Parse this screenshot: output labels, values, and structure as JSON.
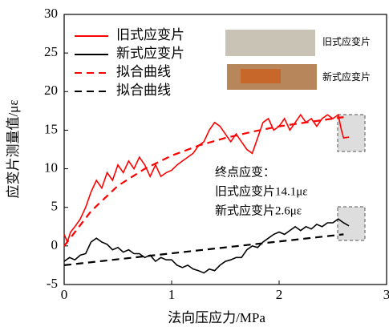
{
  "chart_data": {
    "type": "line",
    "x_label": "法向压应力/MPa",
    "y_label": "应变片测量值/με",
    "xlim": [
      0,
      3
    ],
    "xticks": [
      0,
      1,
      2,
      3
    ],
    "ylim": [
      -5,
      30
    ],
    "yticks": [
      -5,
      0,
      5,
      10,
      15,
      20,
      25,
      30
    ],
    "series": [
      {
        "name": "旧式应变片",
        "color": "#ff0000",
        "dashed": false,
        "x": [
          0,
          0.03,
          0.06,
          0.1,
          0.15,
          0.2,
          0.25,
          0.3,
          0.35,
          0.4,
          0.45,
          0.5,
          0.55,
          0.6,
          0.65,
          0.7,
          0.75,
          0.8,
          0.85,
          0.9,
          0.95,
          1.0,
          1.05,
          1.1,
          1.15,
          1.2,
          1.25,
          1.3,
          1.35,
          1.4,
          1.45,
          1.5,
          1.55,
          1.6,
          1.65,
          1.7,
          1.75,
          1.8,
          1.85,
          1.9,
          1.95,
          2.0,
          2.05,
          2.1,
          2.15,
          2.2,
          2.25,
          2.3,
          2.35,
          2.4,
          2.45,
          2.5,
          2.55,
          2.58,
          2.6,
          2.65
        ],
        "values": [
          1.5,
          0.5,
          1.8,
          2.5,
          3.5,
          5,
          7,
          8.5,
          7.5,
          9.5,
          8.5,
          10.5,
          9.5,
          11,
          10,
          11.5,
          10.5,
          9,
          10.5,
          9,
          9.5,
          9.8,
          10.5,
          11,
          11.5,
          12,
          13,
          13.5,
          15,
          16,
          15.5,
          14.5,
          13.5,
          14.5,
          13.5,
          12.5,
          12,
          14,
          16,
          16.5,
          15,
          15.5,
          16.5,
          15,
          16,
          17,
          16,
          16.5,
          15.5,
          16.5,
          17,
          16.5,
          17,
          15,
          14,
          14.1
        ]
      },
      {
        "name": "新式应变片",
        "color": "#000000",
        "dashed": false,
        "x": [
          0,
          0.05,
          0.1,
          0.15,
          0.2,
          0.25,
          0.3,
          0.35,
          0.4,
          0.45,
          0.5,
          0.55,
          0.6,
          0.65,
          0.7,
          0.75,
          0.8,
          0.85,
          0.9,
          0.95,
          1.0,
          1.05,
          1.1,
          1.15,
          1.2,
          1.25,
          1.3,
          1.35,
          1.4,
          1.45,
          1.5,
          1.55,
          1.6,
          1.65,
          1.7,
          1.75,
          1.8,
          1.85,
          1.9,
          1.95,
          2.0,
          2.05,
          2.1,
          2.15,
          2.2,
          2.25,
          2.3,
          2.35,
          2.4,
          2.45,
          2.5,
          2.55,
          2.6,
          2.65
        ],
        "values": [
          -2,
          -1.5,
          -1.8,
          -1.2,
          -1,
          0.5,
          1,
          0.5,
          0.2,
          -0.5,
          -0.2,
          -0.8,
          -0.5,
          -1,
          -1,
          -1.5,
          -1.2,
          -2,
          -1.5,
          -1.8,
          -1.8,
          -2.5,
          -2.8,
          -2.5,
          -3,
          -3.2,
          -3.5,
          -3,
          -3.2,
          -2.5,
          -2,
          -1.8,
          -1.5,
          -1.5,
          -0.5,
          0,
          -0.2,
          0.5,
          1,
          1.5,
          1.8,
          1.5,
          2,
          2.5,
          2,
          2.5,
          2.2,
          2.8,
          2.5,
          3,
          3,
          3.5,
          3,
          2.6
        ]
      },
      {
        "name": "拟合曲线",
        "color": "#ff0000",
        "dashed": true,
        "x": [
          0,
          0.25,
          0.5,
          0.75,
          1,
          1.25,
          1.5,
          1.75,
          2,
          2.25,
          2.5,
          2.6
        ],
        "values": [
          0,
          4.5,
          7.8,
          10,
          11.7,
          13,
          14,
          14.8,
          15.5,
          16,
          16.5,
          16.7
        ]
      },
      {
        "name": "拟合曲线",
        "color": "#000000",
        "dashed": true,
        "x": [
          0,
          2.6
        ],
        "values": [
          -2.5,
          1.5
        ]
      }
    ],
    "annotations": [
      "终点应变：",
      "旧式应变片14.1με",
      "新式应变片2.6με"
    ],
    "inset_labels": [
      "旧式应变片",
      "新式应变片"
    ]
  }
}
